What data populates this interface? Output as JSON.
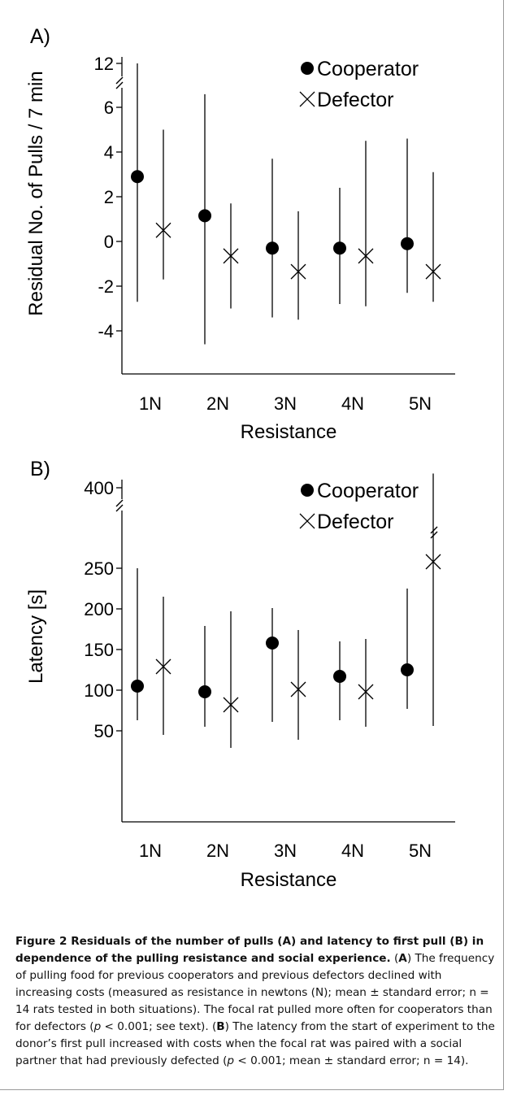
{
  "chart_data": [
    {
      "type": "scatter",
      "panel_label": "A)",
      "xlabel": "Resistance",
      "ylabel": "Residual No. of Pulls / 7 min",
      "categories": [
        "1N",
        "2N",
        "3N",
        "4N",
        "5N"
      ],
      "ylim": [
        -6,
        13
      ],
      "yticks": [
        "-4",
        "-2",
        "0",
        "2",
        "4",
        "6",
        "12"
      ],
      "axis_break": true,
      "legend_position": "top-right",
      "series": [
        {
          "name": "Cooperator",
          "marker": "filled-circle",
          "values": [
            2.9,
            1.15,
            -0.3,
            -0.3,
            -0.1
          ],
          "error_low": [
            -2.7,
            -4.6,
            -3.4,
            -2.8,
            -2.3
          ],
          "error_high": [
            12,
            6.8,
            3.7,
            2.4,
            4.6
          ]
        },
        {
          "name": "Defector",
          "marker": "x-cross",
          "values": [
            0.5,
            -0.65,
            -1.35,
            -0.65,
            -1.35
          ],
          "error_low": [
            -1.7,
            -3.0,
            -3.5,
            -2.9,
            -2.7
          ],
          "error_high": [
            5.0,
            1.7,
            1.35,
            4.5,
            3.1
          ]
        }
      ]
    },
    {
      "type": "scatter",
      "panel_label": "B)",
      "xlabel": "Resistance",
      "ylabel": "Latency [s]",
      "categories": [
        "1N",
        "2N",
        "3N",
        "4N",
        "5N"
      ],
      "ylim": [
        0,
        410
      ],
      "yticks": [
        "50",
        "100",
        "150",
        "200",
        "250",
        "400"
      ],
      "axis_break": true,
      "legend_position": "top-right",
      "series": [
        {
          "name": "Cooperator",
          "marker": "filled-circle",
          "values": [
            105,
            98,
            158,
            117,
            125
          ],
          "error_low": [
            63,
            55,
            61,
            63,
            77
          ],
          "error_high": [
            250,
            179,
            201,
            160,
            225
          ]
        },
        {
          "name": "Defector",
          "marker": "x-cross",
          "values": [
            129,
            82,
            101,
            98,
            258
          ],
          "error_low": [
            45,
            29,
            39,
            55,
            56
          ],
          "error_high": [
            215,
            197,
            174,
            163,
            410
          ]
        }
      ]
    }
  ],
  "caption": {
    "title": "Figure 2 Residuals of the number of pulls (A) and latency to first pull (B) in dependence of the pulling resistance and social experience",
    "body_A_label": "A",
    "body_A_1": "The frequency of pulling food for previous cooperators and previous defectors declined with increasing costs (measured as resistance in newtons (N); mean ± standard error; n = 14 rats tested in both situations). The focal rat pulled more often for cooperators than for defectors (",
    "p_symbol": "p",
    "body_A_2": " < 0.001; see text). (",
    "body_B_label": "B",
    "body_B_1": ") The latency from the start of experiment to the donor’s first pull increased with costs when the focal rat was paired with a social partner that had previously defected (",
    "body_B_2": " < 0.001; mean ± standard error; n = 14)."
  }
}
